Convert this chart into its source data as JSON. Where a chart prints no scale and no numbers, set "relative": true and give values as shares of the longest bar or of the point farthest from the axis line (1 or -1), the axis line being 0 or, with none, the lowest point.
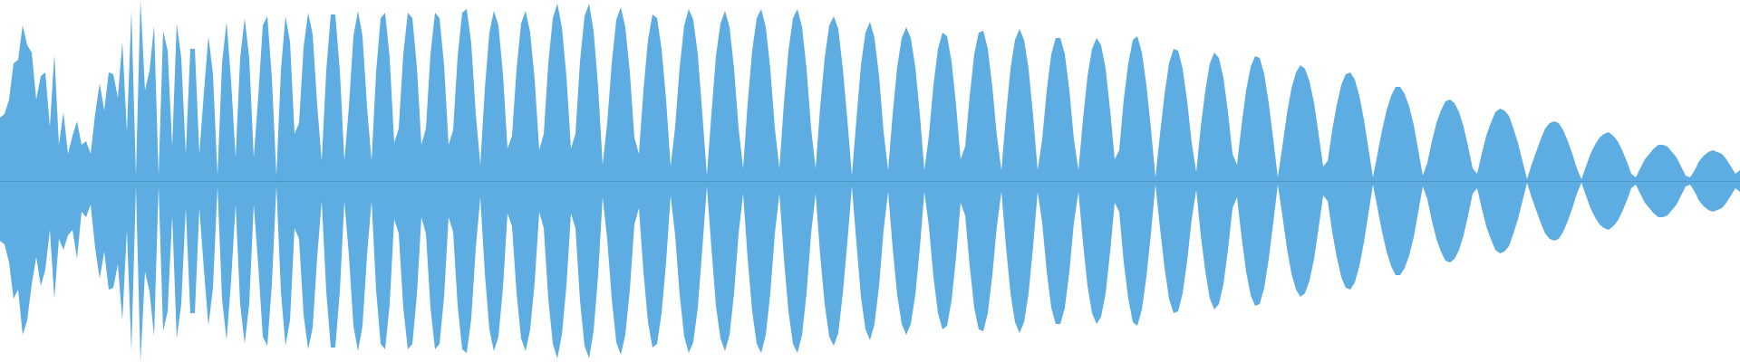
{
  "chart_data": {
    "type": "area",
    "relative": true,
    "ref_lines": [
      {
        "axis": "y",
        "value": 0,
        "color": "#5196c4"
      }
    ],
    "categories": [
      null,
      null,
      null,
      null,
      null,
      null,
      null,
      null,
      null,
      null,
      null,
      null,
      null,
      null,
      null,
      null,
      null,
      null,
      null,
      null,
      null,
      null,
      null,
      null,
      null,
      null,
      null,
      null,
      null,
      null,
      null,
      null,
      null,
      null,
      null,
      null,
      null,
      null,
      null,
      null,
      null,
      null,
      null,
      null,
      null,
      null,
      null,
      null,
      null,
      null,
      null,
      null,
      null,
      null,
      null,
      null,
      null,
      null,
      null,
      null,
      null,
      null,
      null,
      null,
      null,
      null,
      null,
      null,
      null,
      null,
      null,
      null,
      null,
      null,
      null,
      null,
      null,
      null,
      null,
      null,
      null,
      null,
      null,
      null,
      null,
      null,
      null,
      null,
      null,
      null,
      null,
      null,
      null,
      null,
      null,
      null,
      null,
      null,
      null,
      null,
      null,
      null,
      null,
      null,
      null,
      null,
      null,
      null,
      null,
      null,
      null,
      null,
      null,
      null,
      null,
      null,
      null,
      null,
      null,
      null,
      null,
      null,
      null,
      null,
      null,
      null,
      null,
      null,
      null,
      null,
      null,
      null,
      null,
      null,
      null,
      null,
      null,
      null,
      null,
      null,
      null,
      null,
      null,
      null,
      null,
      null,
      null,
      null,
      null,
      null,
      null,
      null,
      null,
      null,
      null,
      null,
      null,
      null,
      null,
      null,
      null,
      null,
      null,
      null,
      null,
      null,
      null,
      null,
      null,
      null,
      null,
      null,
      null,
      null,
      null,
      null,
      null,
      null,
      null,
      null,
      null,
      null,
      null,
      null,
      null,
      null,
      null,
      null,
      null,
      null,
      null,
      null,
      null,
      null,
      null,
      null,
      null,
      null,
      null,
      null,
      null,
      null,
      null,
      null,
      null,
      null,
      null,
      null,
      null,
      null,
      null,
      null,
      null,
      null,
      null,
      null,
      null,
      null,
      null,
      null,
      null,
      null,
      null,
      null,
      null,
      null,
      null,
      null,
      null,
      null,
      null,
      null,
      null,
      null,
      null,
      null,
      null,
      null,
      null,
      null,
      null,
      null,
      null,
      null,
      null,
      null,
      null,
      null,
      null,
      null,
      null,
      null,
      null,
      null,
      null,
      null,
      null,
      null,
      null,
      null,
      null,
      null,
      null,
      null,
      null,
      null,
      null,
      null,
      null,
      null,
      null,
      null,
      null,
      null,
      null,
      null,
      null,
      null,
      null,
      null,
      null,
      null,
      null,
      null,
      null,
      null,
      null,
      null,
      null,
      null,
      null,
      null,
      null,
      null,
      null,
      null,
      null,
      null,
      null,
      null,
      null,
      null,
      null,
      null,
      null,
      null,
      null,
      null,
      null,
      null,
      null,
      null,
      null,
      null,
      null,
      null,
      null,
      null,
      null,
      null,
      null,
      null,
      null,
      null,
      null,
      null,
      null,
      null,
      null,
      null,
      null,
      null,
      null,
      null,
      null,
      null,
      null,
      null,
      null,
      null,
      null,
      null,
      null,
      null,
      null,
      null,
      null,
      null,
      null,
      null,
      null,
      null,
      null,
      null,
      null,
      null,
      null,
      null,
      null,
      null,
      null,
      null,
      null,
      null,
      null,
      null,
      null,
      null,
      null,
      null,
      null,
      null,
      null,
      null,
      null,
      null,
      null,
      null,
      null,
      null,
      null,
      null,
      null,
      null,
      null
    ],
    "series": [
      {
        "color": "#5dade2",
        "values": [
          0.35,
          0.37,
          0.45,
          0.65,
          0.67,
          0.86,
          0.75,
          0.71,
          0.45,
          0.58,
          0.6,
          0.3,
          0.7,
          0.2,
          0.38,
          0.15,
          0.25,
          0.33,
          0.2,
          0.22,
          0.15,
          0.37,
          0.54,
          0.39,
          0.6,
          0.59,
          0.46,
          0.77,
          0.27,
          0.94,
          0.03,
          1,
          0.5,
          0.61,
          0.86,
          0.03,
          0.83,
          0.72,
          0.19,
          0.87,
          0.68,
          0.15,
          0.73,
          0.73,
          0.15,
          0.49,
          0.8,
          0.59,
          0.03,
          0.65,
          0.88,
          0.55,
          0.13,
          0.68,
          0.9,
          0.68,
          0.13,
          0.47,
          0.86,
          0.91,
          0.57,
          0.03,
          0.61,
          0.91,
          0.77,
          0.26,
          0.32,
          0.74,
          0.93,
          0.81,
          0.42,
          0.11,
          0.61,
          0.92,
          0.92,
          0.61,
          0.11,
          0.41,
          0.8,
          0.94,
          0.8,
          0.41,
          0.11,
          0.6,
          0.9,
          0.93,
          0.68,
          0.21,
          0.29,
          0.7,
          0.93,
          0.9,
          0.63,
          0.2,
          0.29,
          0.7,
          0.93,
          0.9,
          0.64,
          0.2,
          0.28,
          0.69,
          0.93,
          0.95,
          0.76,
          0.37,
          0.09,
          0.51,
          0.82,
          0.94,
          0.86,
          0.59,
          0.18,
          0.25,
          0.62,
          0.87,
          0.94,
          0.82,
          0.56,
          0.17,
          0.26,
          0.65,
          0.9,
          0.98,
          0.85,
          0.58,
          0.18,
          0.26,
          0.66,
          0.91,
          0.98,
          0.83,
          0.52,
          0.09,
          0.32,
          0.65,
          0.89,
          0.96,
          0.85,
          0.6,
          0.24,
          0.15,
          0.5,
          0.78,
          0.92,
          0.9,
          0.73,
          0.45,
          0.08,
          0.3,
          0.63,
          0.86,
          0.95,
          0.89,
          0.7,
          0.37,
          0.03,
          0.37,
          0.69,
          0.87,
          0.94,
          0.85,
          0.62,
          0.29,
          0.07,
          0.43,
          0.72,
          0.9,
          0.95,
          0.85,
          0.62,
          0.29,
          0.07,
          0.43,
          0.72,
          0.9,
          0.95,
          0.85,
          0.62,
          0.29,
          0.07,
          0.41,
          0.68,
          0.86,
          0.91,
          0.84,
          0.62,
          0.34,
          0.03,
          0.34,
          0.64,
          0.82,
          0.88,
          0.79,
          0.58,
          0.27,
          0.06,
          0.37,
          0.63,
          0.79,
          0.85,
          0.79,
          0.63,
          0.37,
          0.06,
          0.25,
          0.53,
          0.73,
          0.82,
          0.8,
          0.66,
          0.42,
          0.12,
          0.19,
          0.47,
          0.7,
          0.82,
          0.83,
          0.73,
          0.52,
          0.25,
          0.06,
          0.36,
          0.62,
          0.78,
          0.84,
          0.78,
          0.62,
          0.36,
          0.06,
          0.23,
          0.5,
          0.7,
          0.79,
          0.79,
          0.7,
          0.5,
          0.23,
          0.06,
          0.34,
          0.58,
          0.73,
          0.79,
          0.75,
          0.62,
          0.39,
          0.12,
          0.17,
          0.45,
          0.65,
          0.78,
          0.8,
          0.71,
          0.53,
          0.29,
          0.02,
          0.26,
          0.48,
          0.65,
          0.73,
          0.72,
          0.62,
          0.44,
          0.21,
          0.05,
          0.3,
          0.5,
          0.65,
          0.71,
          0.68,
          0.57,
          0.38,
          0.15,
          0.09,
          0.31,
          0.5,
          0.63,
          0.69,
          0.68,
          0.59,
          0.43,
          0.23,
          0.02,
          0.19,
          0.37,
          0.51,
          0.6,
          0.64,
          0.62,
          0.55,
          0.43,
          0.26,
          0.08,
          0.11,
          0.28,
          0.42,
          0.53,
          0.59,
          0.6,
          0.56,
          0.47,
          0.34,
          0.18,
          0.02,
          0.15,
          0.28,
          0.39,
          0.47,
          0.52,
          0.52,
          0.48,
          0.41,
          0.31,
          0.17,
          0.03,
          0.1,
          0.22,
          0.32,
          0.39,
          0.44,
          0.45,
          0.43,
          0.38,
          0.3,
          0.19,
          0.07,
          0.04,
          0.15,
          0.25,
          0.32,
          0.38,
          0.4,
          0.39,
          0.36,
          0.29,
          0.21,
          0.11,
          0.01,
          0.09,
          0.16,
          0.23,
          0.29,
          0.32,
          0.33,
          0.32,
          0.28,
          0.22,
          0.15,
          0.07,
          0.01,
          0.08,
          0.15,
          0.2,
          0.24,
          0.26,
          0.27,
          0.25,
          0.22,
          0.17,
          0.11,
          0.04,
          0.02,
          0.07,
          0.12,
          0.15,
          0.18,
          0.2,
          0.2,
          0.19,
          0.16,
          0.13,
          0.08,
          0.03,
          0.02,
          0.06,
          0.11,
          0.14,
          0.16,
          0.17,
          0.16,
          0.15,
          0.12,
          0.08,
          0.04,
          0.06
        ]
      },
      {
        "color": "#5dade2",
        "values": [
          -0.33,
          -0.35,
          -0.45,
          -0.65,
          -0.6,
          -0.85,
          -0.77,
          -0.57,
          -0.42,
          -0.58,
          -0.49,
          -0.27,
          -0.65,
          -0.32,
          -0.38,
          -0.3,
          -0.27,
          -0.43,
          -0.17,
          -0.2,
          -0.13,
          -0.37,
          -0.54,
          -0.39,
          -0.6,
          -0.59,
          -0.46,
          -0.77,
          -0.27,
          -0.94,
          -0.03,
          -1,
          -0.5,
          -0.61,
          -0.86,
          -0.03,
          -0.83,
          -0.72,
          -0.19,
          -0.87,
          -0.68,
          -0.15,
          -0.73,
          -0.73,
          -0.15,
          -0.49,
          -0.8,
          -0.59,
          -0.03,
          -0.65,
          -0.88,
          -0.55,
          -0.13,
          -0.68,
          -0.9,
          -0.68,
          -0.13,
          -0.47,
          -0.86,
          -0.91,
          -0.57,
          -0.03,
          -0.61,
          -0.91,
          -0.77,
          -0.26,
          -0.32,
          -0.74,
          -0.93,
          -0.81,
          -0.42,
          -0.11,
          -0.61,
          -0.92,
          -0.92,
          -0.61,
          -0.11,
          -0.41,
          -0.8,
          -0.94,
          -0.8,
          -0.41,
          -0.11,
          -0.6,
          -0.9,
          -0.93,
          -0.68,
          -0.21,
          -0.29,
          -0.7,
          -0.93,
          -0.9,
          -0.63,
          -0.2,
          -0.29,
          -0.7,
          -0.93,
          -0.9,
          -0.64,
          -0.2,
          -0.28,
          -0.69,
          -0.93,
          -0.95,
          -0.76,
          -0.37,
          -0.09,
          -0.51,
          -0.82,
          -0.94,
          -0.86,
          -0.59,
          -0.18,
          -0.25,
          -0.62,
          -0.87,
          -0.94,
          -0.82,
          -0.56,
          -0.17,
          -0.26,
          -0.65,
          -0.9,
          -0.98,
          -0.85,
          -0.58,
          -0.18,
          -0.26,
          -0.66,
          -0.91,
          -0.98,
          -0.83,
          -0.52,
          -0.09,
          -0.32,
          -0.65,
          -0.89,
          -0.96,
          -0.85,
          -0.6,
          -0.24,
          -0.15,
          -0.5,
          -0.78,
          -0.92,
          -0.9,
          -0.73,
          -0.45,
          -0.08,
          -0.3,
          -0.63,
          -0.86,
          -0.95,
          -0.89,
          -0.7,
          -0.37,
          -0.03,
          -0.37,
          -0.69,
          -0.87,
          -0.94,
          -0.85,
          -0.62,
          -0.29,
          -0.07,
          -0.43,
          -0.72,
          -0.9,
          -0.95,
          -0.85,
          -0.62,
          -0.29,
          -0.07,
          -0.43,
          -0.72,
          -0.9,
          -0.95,
          -0.85,
          -0.62,
          -0.29,
          -0.07,
          -0.41,
          -0.68,
          -0.86,
          -0.91,
          -0.84,
          -0.62,
          -0.34,
          -0.03,
          -0.34,
          -0.64,
          -0.82,
          -0.88,
          -0.79,
          -0.58,
          -0.27,
          -0.06,
          -0.37,
          -0.63,
          -0.79,
          -0.85,
          -0.79,
          -0.63,
          -0.37,
          -0.06,
          -0.25,
          -0.53,
          -0.73,
          -0.82,
          -0.8,
          -0.66,
          -0.42,
          -0.12,
          -0.19,
          -0.47,
          -0.7,
          -0.82,
          -0.83,
          -0.73,
          -0.52,
          -0.25,
          -0.06,
          -0.36,
          -0.62,
          -0.78,
          -0.84,
          -0.78,
          -0.62,
          -0.36,
          -0.06,
          -0.23,
          -0.5,
          -0.7,
          -0.79,
          -0.79,
          -0.7,
          -0.5,
          -0.23,
          -0.06,
          -0.34,
          -0.58,
          -0.73,
          -0.79,
          -0.75,
          -0.62,
          -0.39,
          -0.12,
          -0.17,
          -0.45,
          -0.65,
          -0.78,
          -0.8,
          -0.71,
          -0.53,
          -0.29,
          -0.02,
          -0.26,
          -0.48,
          -0.65,
          -0.73,
          -0.72,
          -0.62,
          -0.44,
          -0.21,
          -0.05,
          -0.3,
          -0.5,
          -0.65,
          -0.71,
          -0.68,
          -0.57,
          -0.38,
          -0.15,
          -0.09,
          -0.31,
          -0.5,
          -0.63,
          -0.69,
          -0.68,
          -0.59,
          -0.43,
          -0.23,
          -0.02,
          -0.19,
          -0.37,
          -0.51,
          -0.6,
          -0.64,
          -0.62,
          -0.55,
          -0.43,
          -0.26,
          -0.08,
          -0.11,
          -0.28,
          -0.42,
          -0.53,
          -0.59,
          -0.6,
          -0.56,
          -0.47,
          -0.34,
          -0.18,
          -0.02,
          -0.15,
          -0.28,
          -0.39,
          -0.47,
          -0.52,
          -0.52,
          -0.48,
          -0.41,
          -0.31,
          -0.17,
          -0.03,
          -0.1,
          -0.22,
          -0.32,
          -0.39,
          -0.44,
          -0.45,
          -0.43,
          -0.38,
          -0.3,
          -0.19,
          -0.07,
          -0.04,
          -0.15,
          -0.25,
          -0.32,
          -0.38,
          -0.4,
          -0.39,
          -0.36,
          -0.29,
          -0.21,
          -0.11,
          -0.01,
          -0.09,
          -0.16,
          -0.23,
          -0.29,
          -0.32,
          -0.33,
          -0.32,
          -0.28,
          -0.22,
          -0.15,
          -0.07,
          -0.01,
          -0.08,
          -0.15,
          -0.2,
          -0.24,
          -0.26,
          -0.27,
          -0.25,
          -0.22,
          -0.17,
          -0.11,
          -0.04,
          -0.02,
          -0.07,
          -0.12,
          -0.15,
          -0.18,
          -0.2,
          -0.2,
          -0.19,
          -0.16,
          -0.13,
          -0.08,
          -0.03,
          -0.02,
          -0.06,
          -0.11,
          -0.14,
          -0.16,
          -0.17,
          -0.16,
          -0.15,
          -0.12,
          -0.08,
          -0.04,
          -0.06
        ]
      }
    ]
  }
}
